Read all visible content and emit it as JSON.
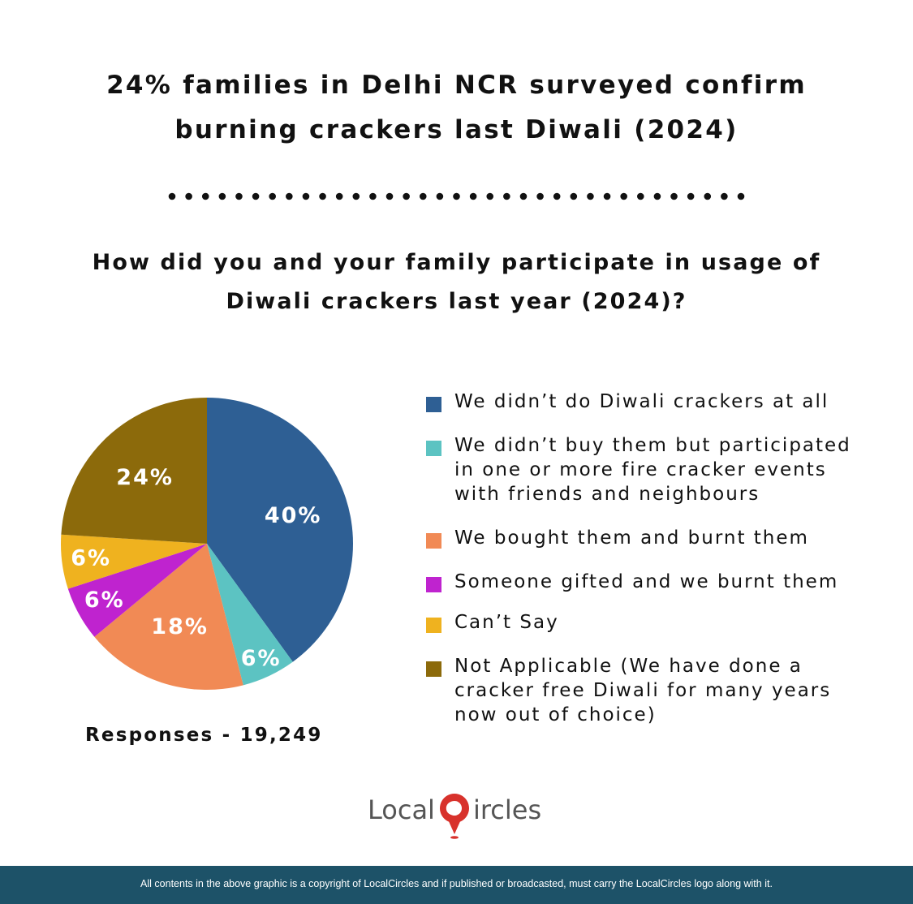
{
  "title": {
    "line1": "24% families in Delhi NCR surveyed confirm",
    "line2": "burning crackers last Diwali (2024)"
  },
  "question": {
    "line1": "How did you and your family participate in usage of",
    "line2": "Diwali crackers last year (2024)?"
  },
  "responses_label": "Responses - 19,249",
  "chart_data": {
    "type": "pie",
    "title": "How did you and your family participate in usage of Diwali crackers last year (2024)?",
    "start": "12 o'clock, clockwise",
    "slices": [
      {
        "label": "We didn’t do Diwali crackers at all",
        "value": 40,
        "display": "40%",
        "color": "#2e5f94"
      },
      {
        "label": "We didn’t buy them but participated in one or more fire cracker events with friends and neighbours",
        "value": 6,
        "display": "6%",
        "color": "#5cc3c2"
      },
      {
        "label": "We bought them and burnt them",
        "value": 18,
        "display": "18%",
        "color": "#f18a55"
      },
      {
        "label": "Someone gifted and we burnt them",
        "value": 6,
        "display": "6%",
        "color": "#bf23cf"
      },
      {
        "label": "Can’t Say",
        "value": 6,
        "display": "6%",
        "color": "#efb21f"
      },
      {
        "label": "Not Applicable (We have done a cracker free Diwali for many years now out of choice)",
        "value": 24,
        "display": "24%",
        "color": "#8c6a0b"
      }
    ],
    "legend_position": "right"
  },
  "legend": [
    {
      "lines": [
        "We didn’t do Diwali crackers at all"
      ],
      "color": "#2e5f94"
    },
    {
      "lines": [
        "We didn’t buy them but participated",
        "in one or more fire cracker events",
        "with friends and neighbours"
      ],
      "color": "#5cc3c2"
    },
    {
      "lines": [
        "We bought them and burnt them"
      ],
      "color": "#f18a55"
    },
    {
      "lines": [
        "Someone gifted and we burnt them"
      ],
      "color": "#bf23cf"
    },
    {
      "lines": [
        "Can’t Say"
      ],
      "color": "#efb21f"
    },
    {
      "lines": [
        "Not Applicable (We have done a",
        "cracker free Diwali for many years",
        "now out of choice)"
      ],
      "color": "#8c6a0b"
    }
  ],
  "logo": {
    "part1": "Local",
    "part2": "ircles",
    "color_red": "#d8322c",
    "color_grey": "#555555"
  },
  "footer": {
    "text": "All contents in the above graphic is a copyright of LocalCircles and if published or broadcasted, must carry the LocalCircles logo along with it."
  },
  "colors": {
    "footer_bg": "#1d5268",
    "text": "#111111"
  }
}
